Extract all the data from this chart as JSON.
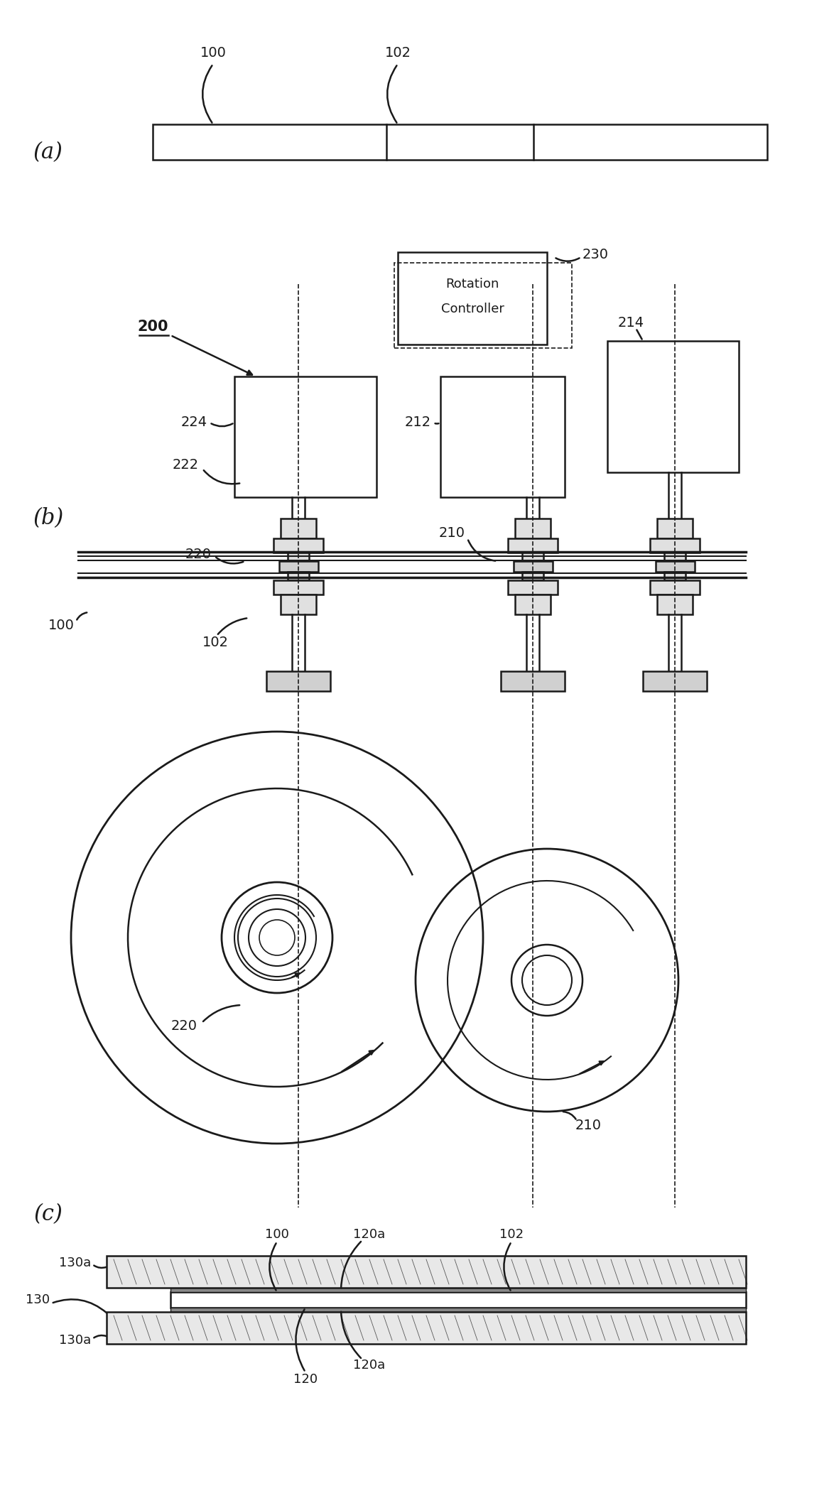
{
  "bg_color": "#ffffff",
  "line_color": "#1a1a1a",
  "fig_width": 11.67,
  "fig_height": 21.09,
  "panel_a_label": "(a)",
  "panel_b_label": "(b)",
  "panel_c_label": "(c)"
}
